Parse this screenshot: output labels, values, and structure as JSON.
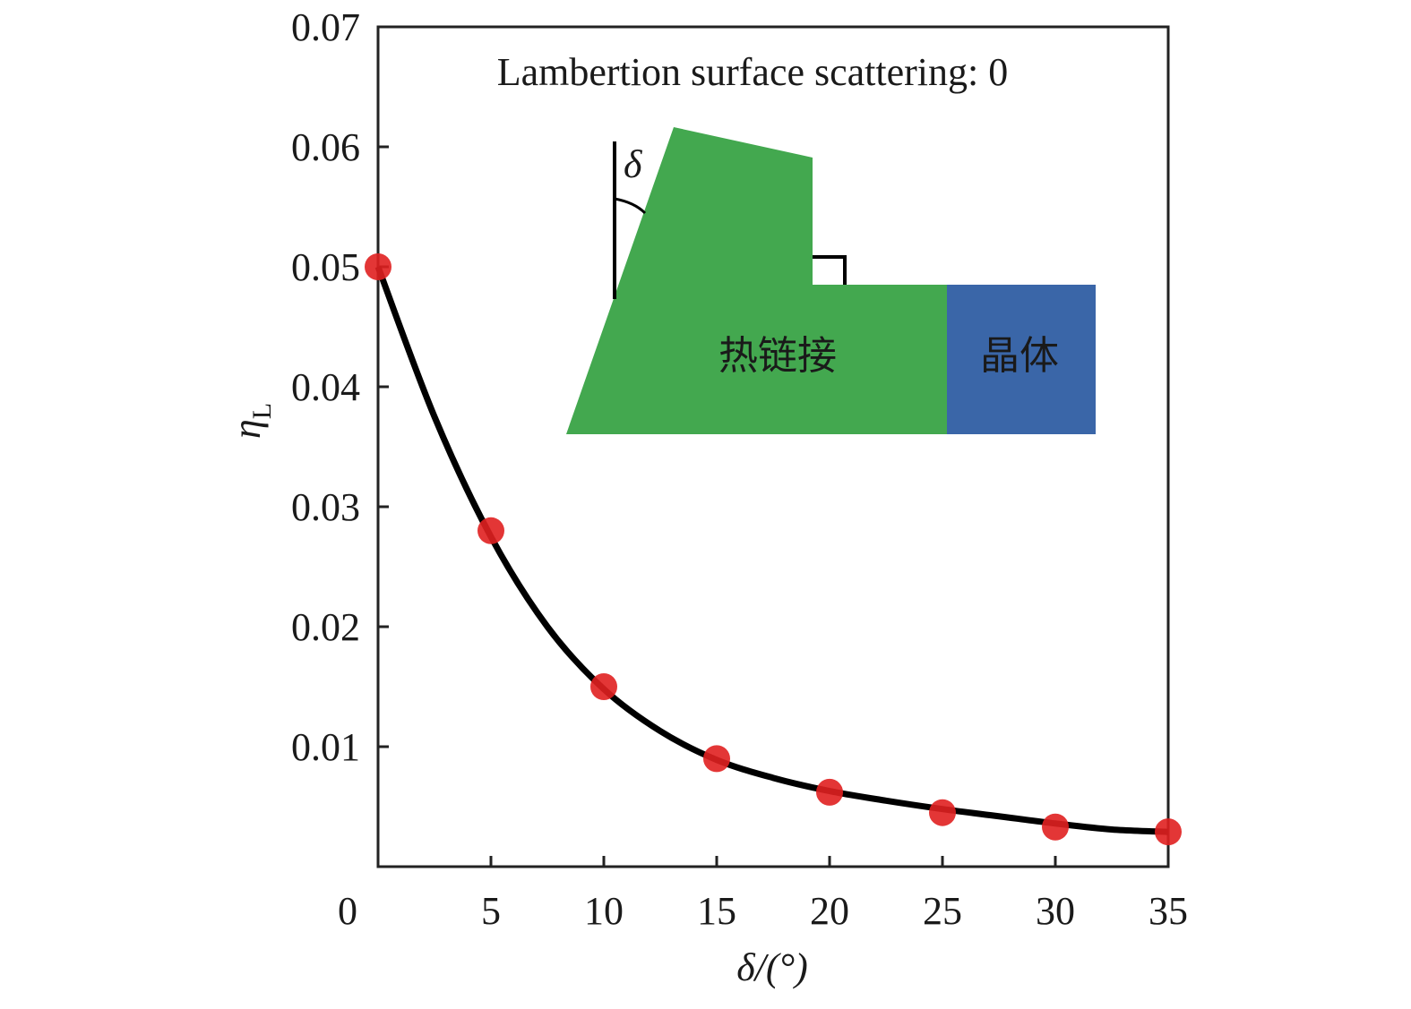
{
  "chart_data": {
    "type": "scatter",
    "xlabel": "δ/(°)",
    "ylabel": "η",
    "ylabel_subscript": "L",
    "xlim": [
      0,
      35
    ],
    "ylim": [
      0,
      0.07
    ],
    "x_ticks": [
      0,
      5,
      10,
      15,
      20,
      25,
      30,
      35
    ],
    "x_tick_labels": [
      "0",
      "5",
      "10",
      "15",
      "20",
      "25",
      "30",
      "35"
    ],
    "y_ticks": [
      0.01,
      0.02,
      0.03,
      0.04,
      0.05,
      0.06,
      0.07
    ],
    "y_tick_labels": [
      "0.01",
      "0.02",
      "0.03",
      "0.04",
      "0.05",
      "0.06",
      "0.07"
    ],
    "grid": false,
    "annotation": "Lambertion surface scattering: 0",
    "series": [
      {
        "kind": "points",
        "color": "#e02020",
        "x": [
          0,
          5,
          10,
          15,
          20,
          25,
          30,
          35
        ],
        "y": [
          0.05,
          0.028,
          0.015,
          0.009,
          0.0062,
          0.0045,
          0.0033,
          0.0029
        ]
      },
      {
        "kind": "curve",
        "color": "#000000",
        "x": [
          0,
          2.5,
          5,
          7.5,
          10,
          12.5,
          15,
          17.5,
          20,
          22.5,
          25,
          27.5,
          30,
          32.5,
          35
        ],
        "y": [
          0.05,
          0.0375,
          0.0275,
          0.02,
          0.0148,
          0.0113,
          0.0089,
          0.0074,
          0.0063,
          0.0055,
          0.0048,
          0.0042,
          0.0036,
          0.0031,
          0.0029
        ]
      }
    ],
    "inset": {
      "angle_symbol": "δ",
      "hot_link_label": "热链接",
      "crystal_label": "晶体",
      "hot_link_color": "#43a84f",
      "crystal_color": "#3a66a8"
    }
  }
}
